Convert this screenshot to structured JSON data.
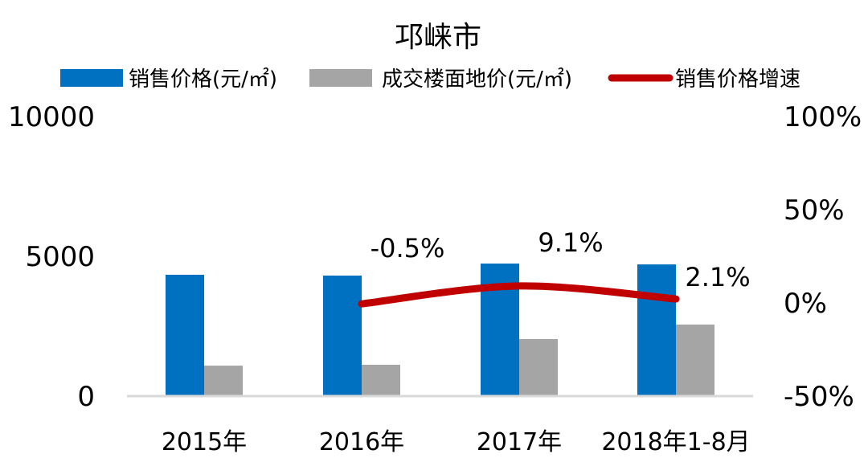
{
  "chart_data": {
    "type": "bar",
    "title": "邛崃市",
    "categories": [
      "2015年",
      "2016年",
      "2017年",
      "2018年1-8月"
    ],
    "series": [
      {
        "name": "销售价格(元/㎡)",
        "type": "bar",
        "axis": "left",
        "color": "#0070C0",
        "values": [
          4340,
          4310,
          4740,
          4710
        ]
      },
      {
        "name": "成交楼面地价(元/㎡)",
        "type": "bar",
        "axis": "left",
        "color": "#A5A5A5",
        "values": [
          1090,
          1120,
          2040,
          2560
        ]
      },
      {
        "name": "销售价格增速",
        "type": "line",
        "axis": "right",
        "color": "#C00000",
        "values": [
          null,
          -0.5,
          9.1,
          2.1
        ],
        "labels": [
          "",
          "-0.5%",
          "9.1%",
          "2.1%"
        ]
      }
    ],
    "left_axis": {
      "ylim": [
        0,
        10000
      ],
      "ticks": [
        "0",
        "5000",
        "10000"
      ]
    },
    "right_axis": {
      "ylim": [
        -50,
        100
      ],
      "ticks": [
        "-50%",
        "0%",
        "50%",
        "100%"
      ]
    },
    "xlabel": "",
    "ylabel": "",
    "grid": false,
    "legend_position": "top"
  }
}
